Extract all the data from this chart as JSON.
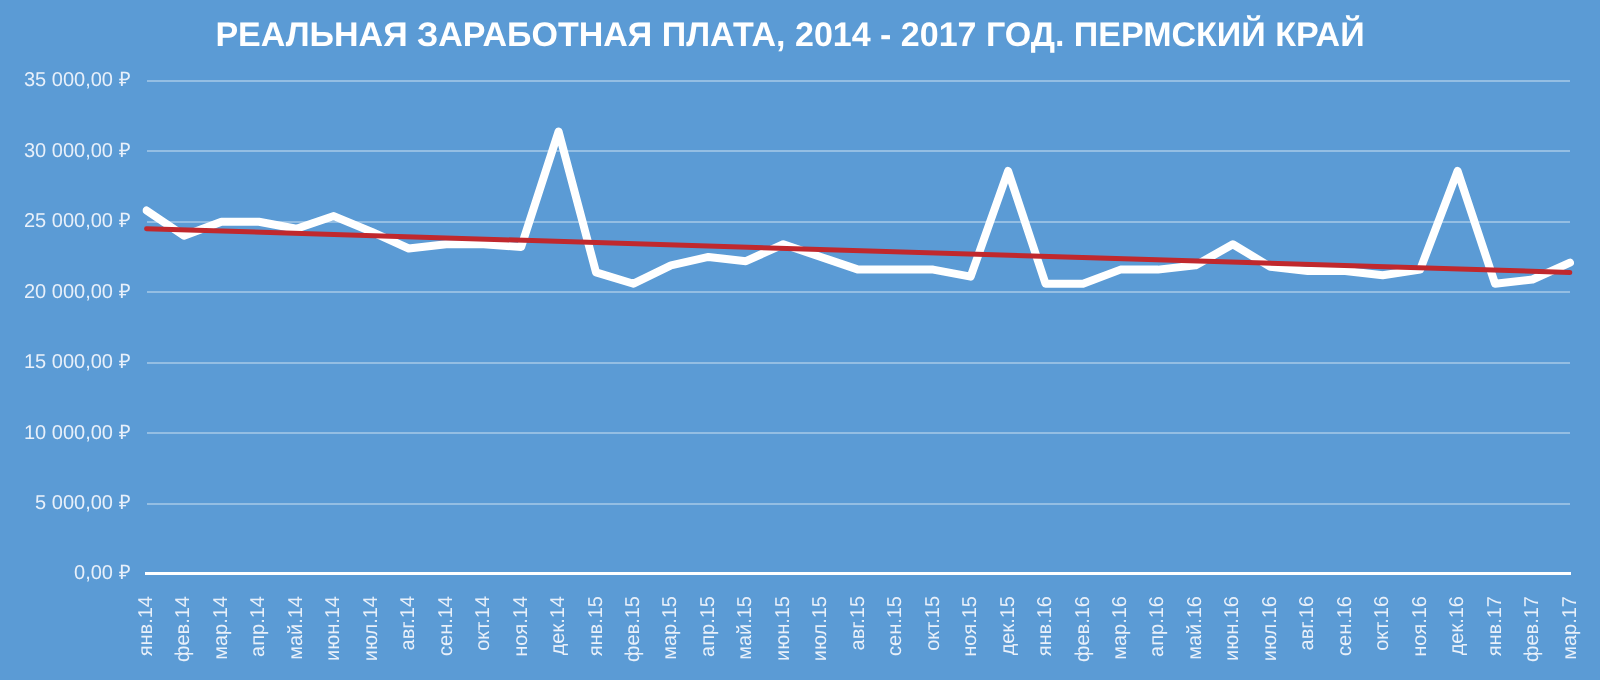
{
  "chart_data": {
    "type": "line",
    "title": "РЕАЛЬНАЯ ЗАРАБОТНАЯ ПЛАТА, 2014 - 2017 ГОД. ПЕРМСКИЙ КРАЙ",
    "categories": [
      "янв.14",
      "фев.14",
      "мар.14",
      "апр.14",
      "май.14",
      "июн.14",
      "июл.14",
      "авг.14",
      "сен.14",
      "окт.14",
      "ноя.14",
      "дек.14",
      "янв.15",
      "фев.15",
      "мар.15",
      "апр.15",
      "май.15",
      "июн.15",
      "июл.15",
      "авг.15",
      "сен.15",
      "окт.15",
      "ноя.15",
      "дек.15",
      "янв.16",
      "фев.16",
      "мар.16",
      "апр.16",
      "май.16",
      "июн.16",
      "июл.16",
      "авг.16",
      "сен.16",
      "окт.16",
      "ноя.16",
      "дек.16",
      "янв.17",
      "фев.17",
      "мар.17"
    ],
    "series": [
      {
        "color": "#ffffff",
        "values": [
          25800,
          24000,
          25000,
          25000,
          24500,
          25400,
          24300,
          23100,
          23400,
          23400,
          23200,
          31400,
          21400,
          20600,
          21900,
          22500,
          22200,
          23400,
          22500,
          21600,
          21600,
          21600,
          21100,
          28600,
          20600,
          20600,
          21600,
          21600,
          21900,
          23400,
          21800,
          21500,
          21500,
          21200,
          21600,
          28600,
          20600,
          20900,
          22100
        ]
      },
      {
        "type": "line",
        "color": "#c0282d",
        "x": [
          "янв.14",
          "мар.17"
        ],
        "values": [
          24500,
          21400
        ]
      }
    ],
    "ylim": [
      0,
      35000
    ],
    "yticks": [
      {
        "value": 0,
        "label": "0,00 ₽"
      },
      {
        "value": 5000,
        "label": "5 000,00 ₽"
      },
      {
        "value": 10000,
        "label": "10 000,00 ₽"
      },
      {
        "value": 15000,
        "label": "15 000,00 ₽"
      },
      {
        "value": 20000,
        "label": "20 000,00 ₽"
      },
      {
        "value": 25000,
        "label": "25 000,00 ₽"
      },
      {
        "value": 30000,
        "label": "30 000,00 ₽"
      },
      {
        "value": 35000,
        "label": "35 000,00 ₽"
      }
    ],
    "grid": "y",
    "legend": false,
    "marker": "none",
    "line_style": "solid"
  }
}
